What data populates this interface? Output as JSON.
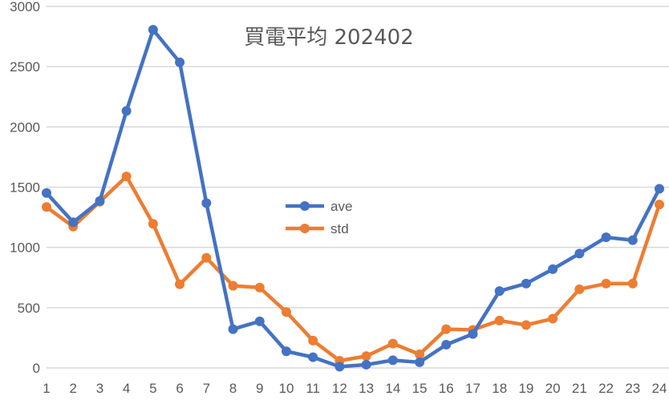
{
  "chart_data": {
    "type": "line",
    "title": "買電平均 202402",
    "xlabel": "",
    "ylabel": "",
    "x": [
      1,
      2,
      3,
      4,
      5,
      6,
      7,
      8,
      9,
      10,
      11,
      12,
      13,
      14,
      15,
      16,
      17,
      18,
      19,
      20,
      21,
      22,
      23,
      24
    ],
    "ylim": [
      0,
      3000
    ],
    "yticks": [
      0,
      500,
      1000,
      1500,
      2000,
      2500,
      3000
    ],
    "grid": true,
    "legend_position": "inside-center",
    "series": [
      {
        "name": "ave",
        "color": "#4472C4",
        "values": [
          1452,
          1209,
          1385,
          2133,
          2806,
          2536,
          1368,
          322,
          387,
          138,
          89,
          11,
          27,
          64,
          47,
          193,
          282,
          638,
          700,
          820,
          949,
          1084,
          1060,
          1487
        ]
      },
      {
        "name": "std",
        "color": "#ED7D31",
        "values": [
          1335,
          1173,
          1379,
          1589,
          1196,
          694,
          914,
          682,
          667,
          464,
          227,
          60,
          98,
          202,
          113,
          322,
          316,
          393,
          356,
          409,
          653,
          700,
          700,
          1356
        ]
      }
    ]
  },
  "legend": {
    "items": [
      {
        "label": "ave"
      },
      {
        "label": "std"
      }
    ]
  }
}
